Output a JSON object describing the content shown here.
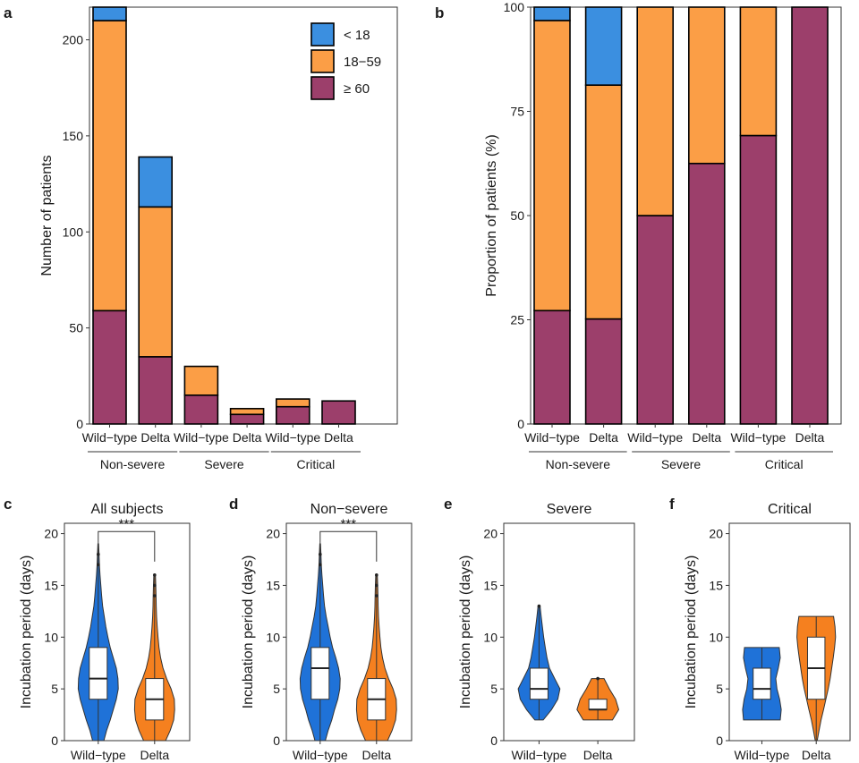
{
  "colors": {
    "under18": "#3b8fe0",
    "age18_59": "#fb9e46",
    "over60": "#9c3f6b",
    "violin_wt": "#1f72d8",
    "violin_delta": "#f5801f"
  },
  "chart_data": [
    {
      "panel": "a",
      "type": "bar",
      "stacked": true,
      "categories": [
        "Wild−type",
        "Delta",
        "Wild−type",
        "Delta",
        "Wild−type",
        "Delta"
      ],
      "groups": [
        "Non-severe",
        "Severe",
        "Critical"
      ],
      "series": [
        {
          "name": "≥ 60",
          "values": [
            59,
            35,
            15,
            5,
            9,
            12
          ]
        },
        {
          "name": "18−59",
          "values": [
            151,
            78,
            15,
            3,
            4,
            0
          ]
        },
        {
          "name": "< 18",
          "values": [
            7,
            26,
            0,
            0,
            0,
            0
          ]
        }
      ],
      "legend_order": [
        "< 18",
        "18−59",
        "≥ 60"
      ],
      "ylabel": "Number of patients",
      "ylim": [
        0,
        217
      ],
      "yticks": [
        0,
        50,
        100,
        150,
        200
      ]
    },
    {
      "panel": "b",
      "type": "bar",
      "stacked": true,
      "categories": [
        "Wild−type",
        "Delta",
        "Wild−type",
        "Delta",
        "Wild−type",
        "Delta"
      ],
      "groups": [
        "Non-severe",
        "Severe",
        "Critical"
      ],
      "series": [
        {
          "name": "≥ 60",
          "values": [
            27.2,
            25.2,
            50,
            62.5,
            69.2,
            100
          ]
        },
        {
          "name": "18−59",
          "values": [
            69.6,
            56.1,
            50,
            37.5,
            30.8,
            0
          ]
        },
        {
          "name": "< 18",
          "values": [
            3.2,
            18.7,
            0,
            0,
            0,
            0
          ]
        }
      ],
      "ylabel": "Proportion of patients (%)",
      "ylim": [
        0,
        100
      ],
      "yticks": [
        0,
        25,
        50,
        75,
        100
      ]
    },
    {
      "panel": "c",
      "type": "violin",
      "title": "All subjects",
      "ylabel": "Incubation period (days)",
      "ylim": [
        0,
        21
      ],
      "yticks": [
        0,
        5,
        10,
        15,
        20
      ],
      "significance": "***",
      "groups": [
        {
          "name": "Wild−type",
          "min": 0,
          "q1": 4,
          "median": 6,
          "q3": 9,
          "max": 19,
          "outliers": [
            18,
            17
          ],
          "density": [
            [
              0,
              0.28
            ],
            [
              1,
              0.42
            ],
            [
              2,
              0.6
            ],
            [
              3,
              0.75
            ],
            [
              4,
              0.9
            ],
            [
              5,
              1.0
            ],
            [
              6,
              0.98
            ],
            [
              7,
              0.9
            ],
            [
              8,
              0.75
            ],
            [
              9,
              0.6
            ],
            [
              10,
              0.48
            ],
            [
              11,
              0.38
            ],
            [
              12,
              0.3
            ],
            [
              13,
              0.22
            ],
            [
              14,
              0.17
            ],
            [
              15,
              0.13
            ],
            [
              16,
              0.09
            ],
            [
              17,
              0.06
            ],
            [
              18,
              0.04
            ],
            [
              19,
              0.02
            ]
          ]
        },
        {
          "name": "Delta",
          "min": 0,
          "q1": 2,
          "median": 4,
          "q3": 6,
          "max": 16,
          "outliers": [
            14,
            15,
            16
          ],
          "density": [
            [
              0,
              0.55
            ],
            [
              1,
              0.78
            ],
            [
              2,
              0.95
            ],
            [
              3,
              1.0
            ],
            [
              4,
              0.98
            ],
            [
              5,
              0.82
            ],
            [
              6,
              0.6
            ],
            [
              7,
              0.42
            ],
            [
              8,
              0.3
            ],
            [
              9,
              0.22
            ],
            [
              10,
              0.17
            ],
            [
              11,
              0.13
            ],
            [
              12,
              0.1
            ],
            [
              13,
              0.08
            ],
            [
              14,
              0.07
            ],
            [
              15,
              0.06
            ],
            [
              16,
              0.04
            ]
          ]
        }
      ]
    },
    {
      "panel": "d",
      "type": "violin",
      "title": "Non−severe",
      "ylabel": "Incubation period (days)",
      "ylim": [
        0,
        21
      ],
      "yticks": [
        0,
        5,
        10,
        15,
        20
      ],
      "significance": "***",
      "groups": [
        {
          "name": "Wild−type",
          "min": 0,
          "q1": 4,
          "median": 7,
          "q3": 9,
          "max": 19,
          "outliers": [
            18,
            17
          ],
          "density": [
            [
              0,
              0.26
            ],
            [
              1,
              0.4
            ],
            [
              2,
              0.58
            ],
            [
              3,
              0.72
            ],
            [
              4,
              0.88
            ],
            [
              5,
              0.98
            ],
            [
              6,
              1.0
            ],
            [
              7,
              0.92
            ],
            [
              8,
              0.78
            ],
            [
              9,
              0.62
            ],
            [
              10,
              0.5
            ],
            [
              11,
              0.4
            ],
            [
              12,
              0.3
            ],
            [
              13,
              0.22
            ],
            [
              14,
              0.17
            ],
            [
              15,
              0.13
            ],
            [
              16,
              0.09
            ],
            [
              17,
              0.06
            ],
            [
              18,
              0.04
            ],
            [
              19,
              0.02
            ]
          ]
        },
        {
          "name": "Delta",
          "min": 0,
          "q1": 2,
          "median": 4,
          "q3": 6,
          "max": 16,
          "outliers": [
            14,
            15,
            16
          ],
          "density": [
            [
              0,
              0.55
            ],
            [
              1,
              0.78
            ],
            [
              2,
              0.95
            ],
            [
              3,
              1.0
            ],
            [
              4,
              0.98
            ],
            [
              5,
              0.82
            ],
            [
              6,
              0.6
            ],
            [
              7,
              0.42
            ],
            [
              8,
              0.3
            ],
            [
              9,
              0.22
            ],
            [
              10,
              0.17
            ],
            [
              11,
              0.13
            ],
            [
              12,
              0.1
            ],
            [
              13,
              0.08
            ],
            [
              14,
              0.07
            ],
            [
              15,
              0.06
            ],
            [
              16,
              0.04
            ]
          ]
        }
      ]
    },
    {
      "panel": "e",
      "type": "violin",
      "title": "Severe",
      "ylabel": "Incubation period (days)",
      "ylim": [
        0,
        21
      ],
      "yticks": [
        0,
        5,
        10,
        15,
        20
      ],
      "groups": [
        {
          "name": "Wild−type",
          "min": 2,
          "q1": 4,
          "median": 5,
          "q3": 7,
          "max": 13,
          "outliers": [
            13
          ],
          "density": [
            [
              2,
              0.2
            ],
            [
              3,
              0.6
            ],
            [
              4,
              0.9
            ],
            [
              5,
              1.0
            ],
            [
              6,
              0.75
            ],
            [
              7,
              0.5
            ],
            [
              8,
              0.38
            ],
            [
              9,
              0.3
            ],
            [
              10,
              0.22
            ],
            [
              11,
              0.16
            ],
            [
              12,
              0.1
            ],
            [
              13,
              0.05
            ]
          ]
        },
        {
          "name": "Delta",
          "min": 2,
          "q1": 3,
          "median": 3,
          "q3": 4,
          "max": 6,
          "outliers": [
            6
          ],
          "density": [
            [
              2,
              0.7
            ],
            [
              3,
              1.0
            ],
            [
              4,
              0.85
            ],
            [
              5,
              0.55
            ],
            [
              6,
              0.3
            ]
          ]
        }
      ]
    },
    {
      "panel": "f",
      "type": "violin",
      "title": "Critical",
      "ylabel": "Incubation period (days)",
      "ylim": [
        0,
        21
      ],
      "yticks": [
        0,
        5,
        10,
        15,
        20
      ],
      "groups": [
        {
          "name": "Wild−type",
          "min": 2,
          "q1": 4,
          "median": 5,
          "q3": 7,
          "max": 9,
          "outliers": [],
          "density": [
            [
              2,
              0.95
            ],
            [
              3,
              1.0
            ],
            [
              4,
              0.92
            ],
            [
              5,
              0.78
            ],
            [
              6,
              0.72
            ],
            [
              7,
              0.85
            ],
            [
              8,
              0.95
            ],
            [
              9,
              0.9
            ]
          ]
        },
        {
          "name": "Delta",
          "min": 0,
          "q1": 4,
          "median": 7,
          "q3": 10,
          "max": 12,
          "outliers": [],
          "density": [
            [
              0,
              0.05
            ],
            [
              1,
              0.15
            ],
            [
              2,
              0.25
            ],
            [
              3,
              0.38
            ],
            [
              4,
              0.5
            ],
            [
              5,
              0.62
            ],
            [
              6,
              0.72
            ],
            [
              7,
              0.8
            ],
            [
              8,
              0.88
            ],
            [
              9,
              0.95
            ],
            [
              10,
              1.0
            ],
            [
              11,
              0.97
            ],
            [
              12,
              0.9
            ]
          ]
        }
      ]
    }
  ]
}
